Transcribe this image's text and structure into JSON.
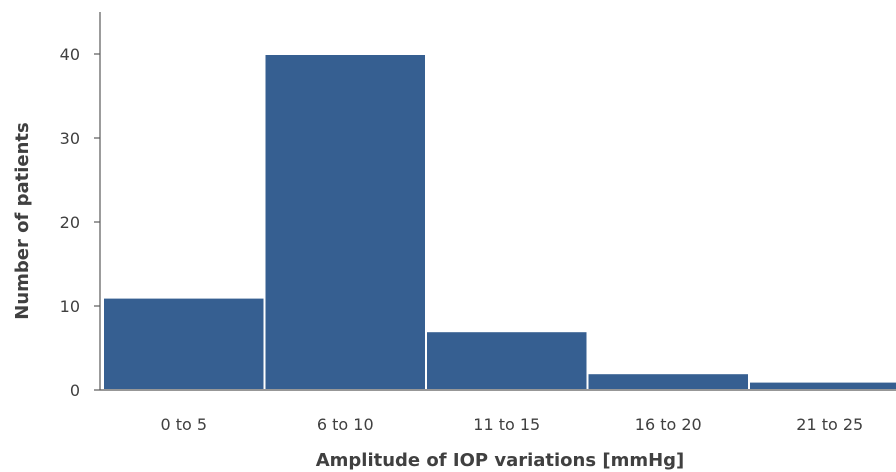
{
  "chart_data": {
    "type": "bar",
    "title": "",
    "xlabel": "Amplitude of IOP variations [mmHg]",
    "ylabel": "Number of patients",
    "categories": [
      "0 to 5",
      "6 to 10",
      "11 to 15",
      "16 to 20",
      "21 to 25"
    ],
    "values": [
      11,
      40,
      7,
      2,
      1
    ],
    "ylim": [
      0,
      45
    ],
    "yticks": [
      0,
      10,
      20,
      30,
      40
    ],
    "bar_color": "#365f91",
    "grid": false,
    "legend": "none"
  }
}
